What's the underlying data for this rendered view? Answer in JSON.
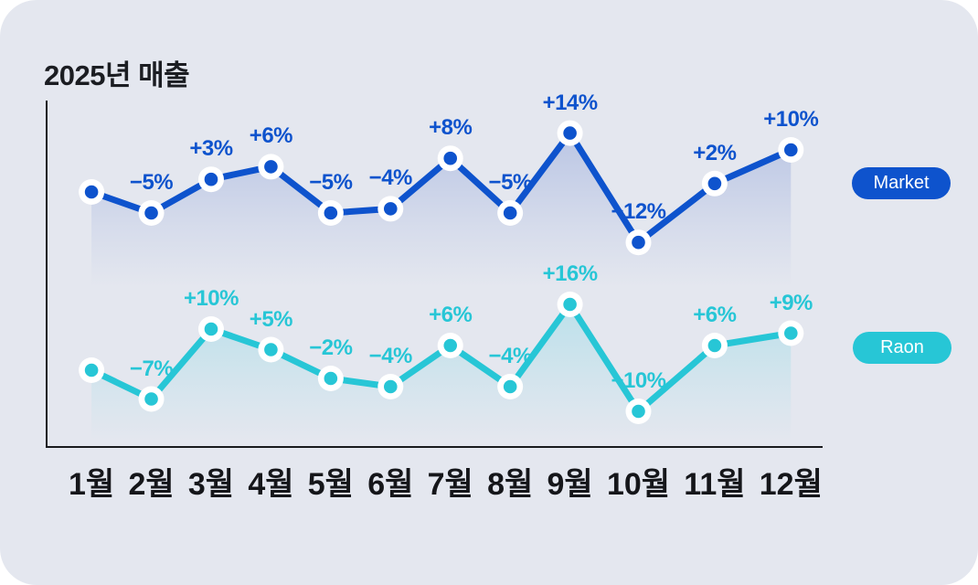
{
  "title": "2025년 매출",
  "legend": [
    {
      "label": "Market",
      "color": "#0e53cd"
    },
    {
      "label": "Raon",
      "color": "#27c6d6"
    }
  ],
  "months": [
    "1월",
    "2월",
    "3월",
    "4월",
    "5월",
    "6월",
    "7월",
    "8월",
    "9월",
    "10월",
    "11월",
    "12월"
  ],
  "chart_data": {
    "type": "line",
    "title": "2025년 매출",
    "categories": [
      "1월",
      "2월",
      "3월",
      "4월",
      "5월",
      "6월",
      "7월",
      "8월",
      "9월",
      "10월",
      "11월",
      "12월"
    ],
    "unit": "%",
    "legend_position": "right",
    "grid": false,
    "series": [
      {
        "name": "Market",
        "color": "#0e53cd",
        "values": [
          null,
          -5,
          3,
          6,
          -5,
          -4,
          8,
          -5,
          14,
          -12,
          2,
          10
        ],
        "labels": [
          "",
          "−5%",
          "+3%",
          "+6%",
          "−5%",
          "−4%",
          "+8%",
          "−5%",
          "+14%",
          "−12%",
          "+2%",
          "+10%"
        ]
      },
      {
        "name": "Raon",
        "color": "#27c6d6",
        "values": [
          null,
          -7,
          10,
          5,
          -2,
          -4,
          6,
          -4,
          16,
          -10,
          6,
          9
        ],
        "labels": [
          "",
          "−7%",
          "+10%",
          "+5%",
          "−2%",
          "−4%",
          "+6%",
          "−4%",
          "+16%",
          "−10%",
          "+6%",
          "+9%"
        ]
      }
    ]
  }
}
